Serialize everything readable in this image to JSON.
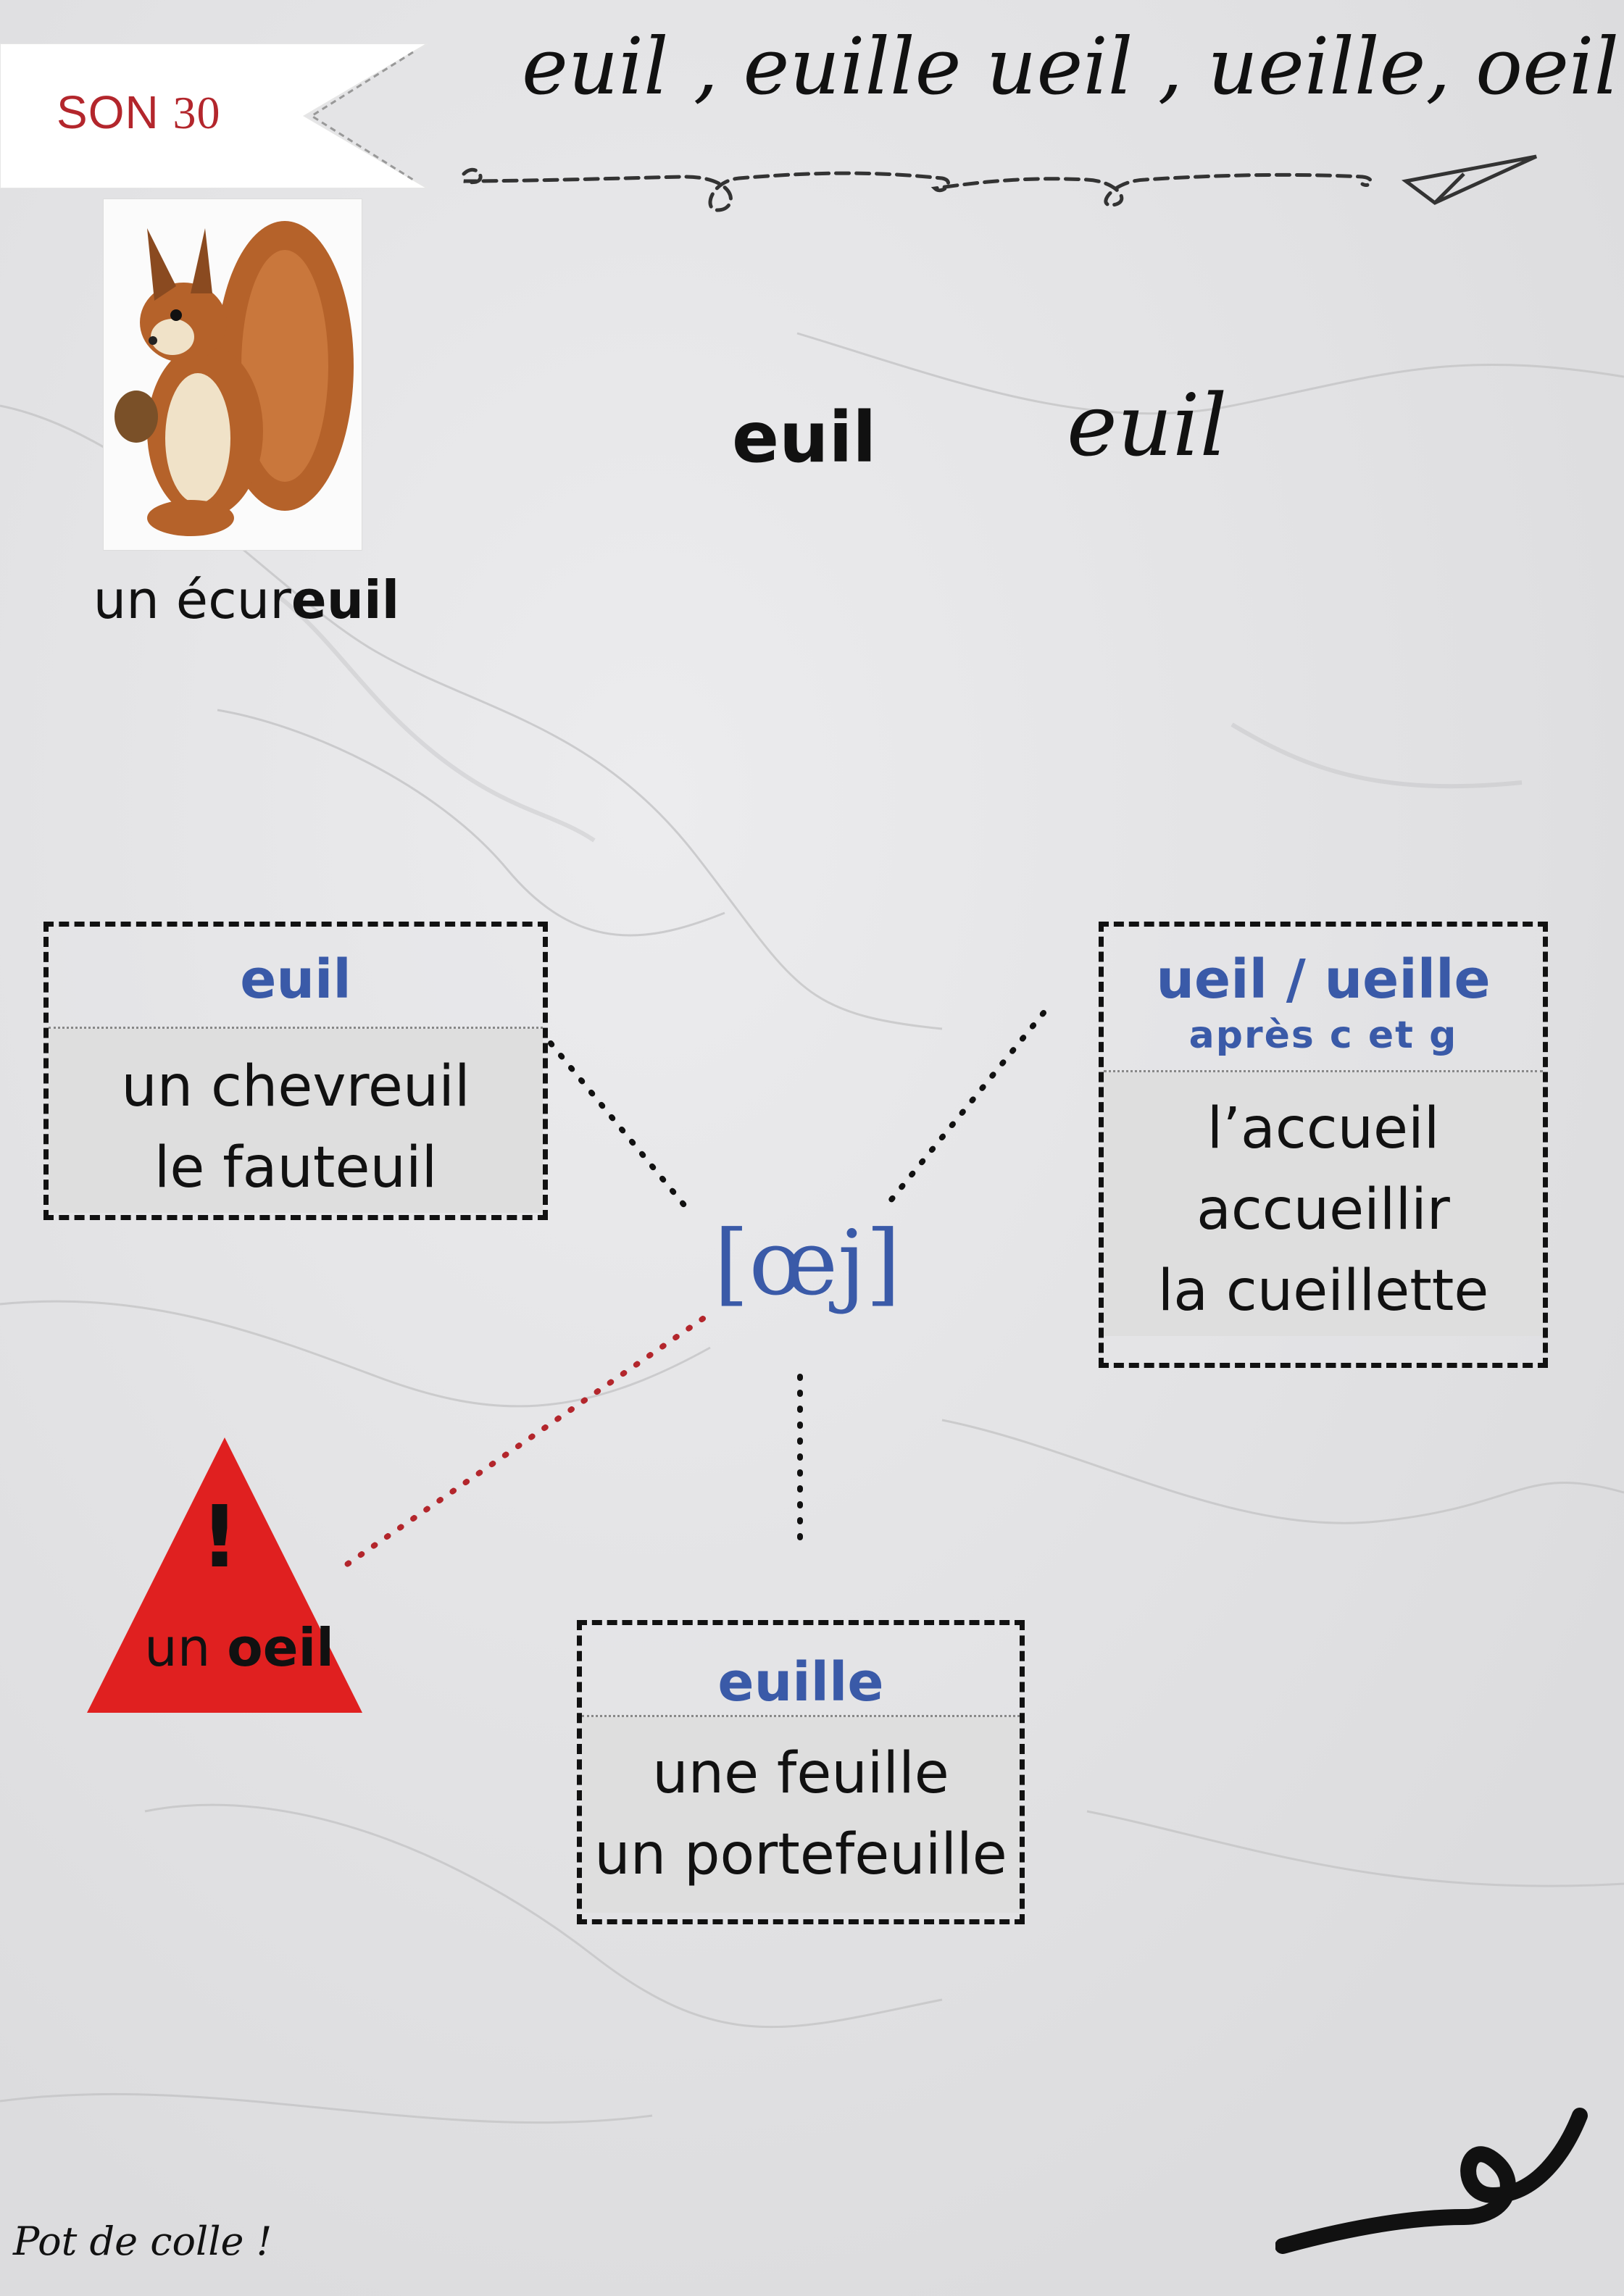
{
  "header": {
    "tag_label": "SON",
    "tag_number": "30",
    "title": "euil , euille ueil , ueille, oeil"
  },
  "picture": {
    "icon": "squirrel-illustration",
    "caption_prefix": "un écur",
    "caption_bold": "euil"
  },
  "graphemes": {
    "print": "euil",
    "cursive": "euil"
  },
  "phoneme": "[œj]",
  "boxes": {
    "euil": {
      "heading": "euil",
      "words": [
        "un chevreuil",
        "le fauteuil"
      ]
    },
    "ueil": {
      "heading": "ueil / ueille",
      "note": "après c et g",
      "words": [
        "l’accueil",
        "accueillir",
        "la cueillette"
      ]
    },
    "euille": {
      "heading": "euille",
      "words": [
        "une feuille",
        "un portefeuille"
      ]
    }
  },
  "warning": {
    "icon": "warning-triangle-icon",
    "mark": "!",
    "text_prefix": "un ",
    "text_bold": "oeil",
    "color": "#e02020"
  },
  "footer": {
    "brand": "Pot de colle !"
  },
  "colors": {
    "accent_blue": "#3a5aa8",
    "tag_red": "#b3262c",
    "connector_red": "#b3262c"
  }
}
